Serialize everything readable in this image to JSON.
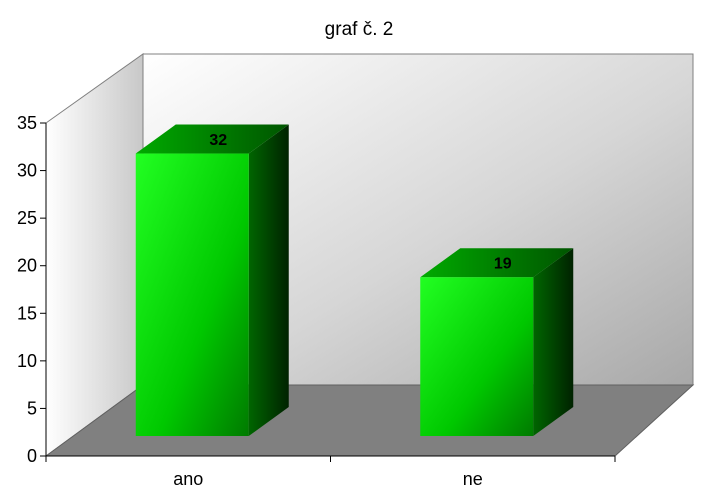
{
  "chart_data": {
    "type": "bar",
    "title": "graf č. 2",
    "xlabel": "",
    "ylabel": "",
    "categories": [
      "ano",
      "ne"
    ],
    "values": [
      32,
      19
    ],
    "data_labels": [
      "32",
      "19"
    ],
    "yticks": [
      "0",
      "5",
      "10",
      "15",
      "20",
      "25",
      "30",
      "35"
    ],
    "ylim": [
      0,
      35
    ],
    "grid": false,
    "legend": "none",
    "three_d": true,
    "colors": {
      "bar_front": "#00dd00",
      "bar_side": "#004000",
      "bar_top": "#00a000",
      "floor": "#808080",
      "back_wall": "#d8d8d8",
      "side_wall": "#e0e0e0"
    }
  }
}
